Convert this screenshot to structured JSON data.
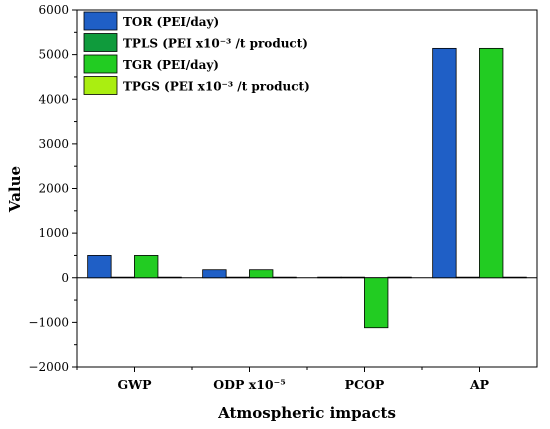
{
  "chart_data": {
    "type": "bar",
    "xlabel": "Atmospheric impacts",
    "ylabel": "Value",
    "ylim": [
      -2000,
      6000
    ],
    "yticks": [
      -2000,
      -1000,
      0,
      1000,
      2000,
      3000,
      4000,
      5000,
      6000
    ],
    "categories": [
      "GWP",
      "ODP x10⁻⁵",
      "PCOP",
      "AP"
    ],
    "series": [
      {
        "name": "TOR (PEI/day)",
        "color": "#1f5fc6",
        "values": [
          500,
          180,
          0,
          5140
        ]
      },
      {
        "name": "TPLS (PEI x10⁻³ /t product)",
        "color": "#0f9b3c",
        "values": [
          0,
          0,
          0,
          0
        ]
      },
      {
        "name": "TGR (PEI/day)",
        "color": "#22cc22",
        "values": [
          500,
          180,
          -1120,
          5140
        ]
      },
      {
        "name": "TPGS (PEI x10⁻³ /t product)",
        "color": "#aaee11",
        "values": [
          0,
          0,
          0,
          0
        ]
      }
    ],
    "legend": "top-left",
    "grid": false
  }
}
